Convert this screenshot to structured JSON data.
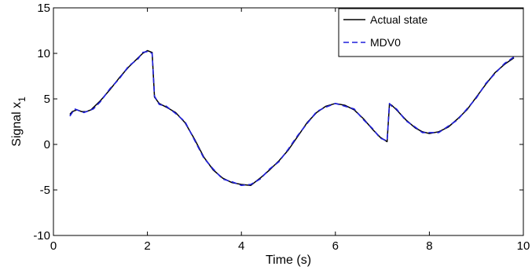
{
  "chart_data": {
    "type": "line",
    "xlabel": "Time (s)",
    "ylabel_main": "Signal x",
    "ylabel_sub": "1",
    "xlim": [
      0,
      10
    ],
    "ylim": [
      -10,
      15
    ],
    "xticks": [
      "0",
      "2",
      "4",
      "6",
      "8",
      "10"
    ],
    "yticks": [
      "-10",
      "-5",
      "0",
      "5",
      "10",
      "15"
    ],
    "grid": false,
    "legend_position": "top-right",
    "series": [
      {
        "name": "Actual state",
        "color": "#000000",
        "style": "solid",
        "x": [
          0.35,
          0.4,
          0.5,
          0.6,
          0.7,
          0.8,
          1.0,
          1.2,
          1.4,
          1.6,
          1.8,
          1.9,
          2.0,
          2.1,
          2.15,
          2.25,
          2.4,
          2.6,
          2.8,
          3.0,
          3.2,
          3.4,
          3.6,
          3.8,
          4.0,
          4.2,
          4.4,
          4.6,
          4.8,
          5.0,
          5.2,
          5.4,
          5.6,
          5.8,
          6.0,
          6.2,
          6.4,
          6.6,
          6.8,
          6.95,
          7.1,
          7.15,
          7.2,
          7.3,
          7.5,
          7.7,
          7.85,
          8.0,
          8.2,
          8.4,
          8.6,
          8.8,
          9.0,
          9.2,
          9.4,
          9.6,
          9.8
        ],
        "y": [
          3.3,
          3.6,
          3.8,
          3.6,
          3.6,
          3.8,
          4.8,
          6.0,
          7.3,
          8.5,
          9.5,
          10.0,
          10.3,
          10.1,
          5.2,
          4.5,
          4.1,
          3.5,
          2.4,
          0.6,
          -1.4,
          -2.8,
          -3.7,
          -4.2,
          -4.4,
          -4.5,
          -3.7,
          -2.8,
          -1.8,
          -0.6,
          0.9,
          2.4,
          3.5,
          4.2,
          4.5,
          4.3,
          3.8,
          2.8,
          1.6,
          0.8,
          0.3,
          4.4,
          4.3,
          3.8,
          2.7,
          1.8,
          1.4,
          1.2,
          1.4,
          1.9,
          2.8,
          3.8,
          5.2,
          6.6,
          7.9,
          8.8,
          9.5
        ]
      },
      {
        "name": "MDV0",
        "color": "#1f1fdc",
        "style": "dashed",
        "x": [
          0.35,
          0.45,
          0.55,
          0.65,
          0.75,
          0.85,
          1.0,
          1.2,
          1.4,
          1.6,
          1.8,
          1.9,
          2.0,
          2.1,
          2.15,
          2.25,
          2.4,
          2.6,
          2.8,
          3.0,
          3.2,
          3.4,
          3.6,
          3.8,
          4.0,
          4.2,
          4.4,
          4.6,
          4.8,
          5.0,
          5.2,
          5.4,
          5.6,
          5.8,
          6.0,
          6.2,
          6.4,
          6.6,
          6.8,
          6.95,
          7.1,
          7.15,
          7.2,
          7.3,
          7.5,
          7.7,
          7.85,
          8.0,
          8.2,
          8.4,
          8.6,
          8.8,
          9.0,
          9.2,
          9.4,
          9.6,
          9.8
        ],
        "y": [
          3.1,
          3.9,
          3.7,
          3.5,
          3.7,
          3.9,
          4.7,
          6.1,
          7.2,
          8.6,
          9.4,
          10.1,
          10.2,
          10.0,
          5.3,
          4.4,
          4.2,
          3.4,
          2.5,
          0.5,
          -1.5,
          -2.7,
          -3.8,
          -4.1,
          -4.5,
          -4.4,
          -3.8,
          -2.7,
          -1.9,
          -0.5,
          1.0,
          2.3,
          3.6,
          4.1,
          4.5,
          4.2,
          3.9,
          2.7,
          1.7,
          0.7,
          0.4,
          4.5,
          4.2,
          3.9,
          2.6,
          1.9,
          1.3,
          1.3,
          1.3,
          2.0,
          2.7,
          3.9,
          5.1,
          6.7,
          7.8,
          8.9,
          9.6
        ]
      }
    ]
  }
}
